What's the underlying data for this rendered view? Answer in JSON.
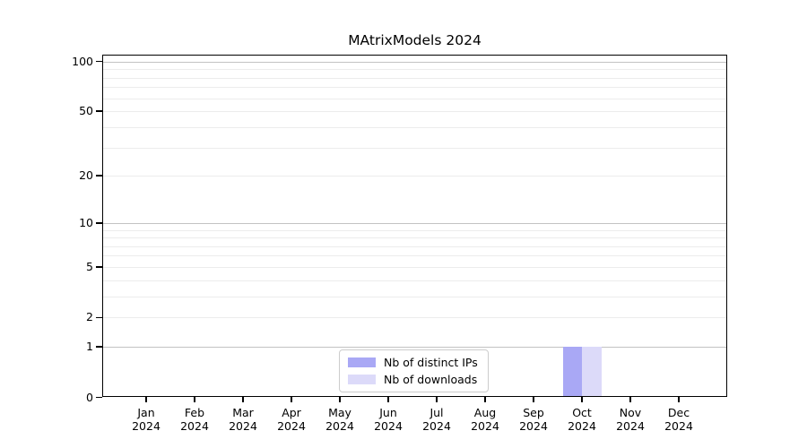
{
  "title": "MAtrixModels 2024",
  "chart_data": {
    "type": "bar",
    "title": "MAtrixModels 2024",
    "xlabel": "",
    "ylabel": "",
    "yscale": "log1p",
    "ylim": [
      0,
      110
    ],
    "grid": true,
    "legend_position": "bottom-center-inside",
    "x_categories": [
      {
        "month": "Jan",
        "year": "2024"
      },
      {
        "month": "Feb",
        "year": "2024"
      },
      {
        "month": "Mar",
        "year": "2024"
      },
      {
        "month": "Apr",
        "year": "2024"
      },
      {
        "month": "May",
        "year": "2024"
      },
      {
        "month": "Jun",
        "year": "2024"
      },
      {
        "month": "Jul",
        "year": "2024"
      },
      {
        "month": "Aug",
        "year": "2024"
      },
      {
        "month": "Sep",
        "year": "2024"
      },
      {
        "month": "Oct",
        "year": "2024"
      },
      {
        "month": "Nov",
        "year": "2024"
      },
      {
        "month": "Dec",
        "year": "2024"
      }
    ],
    "series": [
      {
        "name": "Nb of distinct IPs",
        "color": "#a9a8f5",
        "values": [
          0,
          0,
          0,
          0,
          0,
          0,
          0,
          0,
          0,
          1,
          0,
          0
        ]
      },
      {
        "name": "Nb of downloads",
        "color": "#dcdaf9",
        "values": [
          0,
          0,
          0,
          0,
          0,
          0,
          0,
          0,
          0,
          1,
          0,
          0
        ]
      }
    ],
    "ytick_labels": [
      0,
      1,
      2,
      5,
      10,
      20,
      50,
      100
    ],
    "y_major_gridlines": [
      1,
      10,
      100
    ],
    "y_minor_gridlines": [
      2,
      3,
      4,
      5,
      6,
      7,
      8,
      9,
      20,
      30,
      40,
      50,
      60,
      70,
      80,
      90
    ]
  },
  "colors": {
    "bar_distinct_ips": "#a9a8f5",
    "bar_downloads": "#dcdaf9",
    "major_grid": "#c3c3c3",
    "minor_grid": "#ececec",
    "spine": "#000000",
    "legend_border": "#cccccc",
    "background": "#ffffff"
  }
}
